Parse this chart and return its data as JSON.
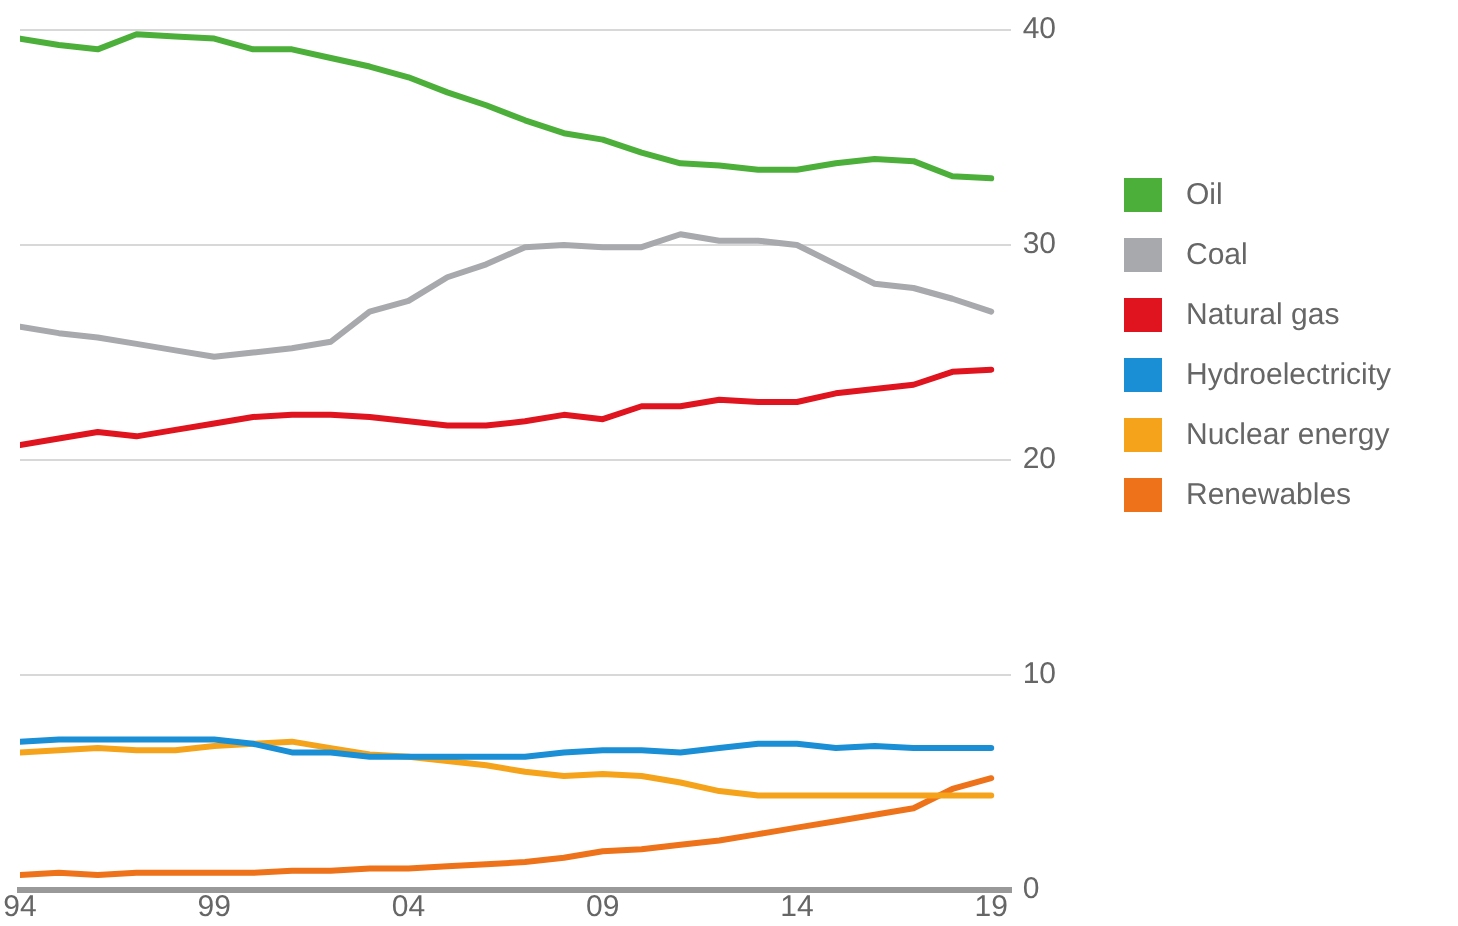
{
  "chart_data": {
    "type": "line",
    "x": [
      1994,
      1995,
      1996,
      1997,
      1998,
      1999,
      2000,
      2001,
      2002,
      2003,
      2004,
      2005,
      2006,
      2007,
      2008,
      2009,
      2010,
      2011,
      2012,
      2013,
      2014,
      2015,
      2016,
      2017,
      2018,
      2019
    ],
    "series": [
      {
        "name": "Oil",
        "color": "#4caf3a",
        "values": [
          39.6,
          39.3,
          39.1,
          39.8,
          39.7,
          39.6,
          39.1,
          39.1,
          38.7,
          38.3,
          37.8,
          37.1,
          36.5,
          35.8,
          35.2,
          34.9,
          34.3,
          33.8,
          33.7,
          33.5,
          33.5,
          33.8,
          34.0,
          33.9,
          33.2,
          33.1
        ]
      },
      {
        "name": "Coal",
        "color": "#a8a9ad",
        "values": [
          26.2,
          25.9,
          25.7,
          25.4,
          25.1,
          24.8,
          25.0,
          25.2,
          25.5,
          26.9,
          27.4,
          28.5,
          29.1,
          29.9,
          30.0,
          29.9,
          29.9,
          30.5,
          30.2,
          30.2,
          30.0,
          29.1,
          28.2,
          28.0,
          27.5,
          26.9
        ]
      },
      {
        "name": "Natural gas",
        "color": "#e0141e",
        "values": [
          20.7,
          21.0,
          21.3,
          21.1,
          21.4,
          21.7,
          22.0,
          22.1,
          22.1,
          22.0,
          21.8,
          21.6,
          21.6,
          21.8,
          22.1,
          21.9,
          22.5,
          22.5,
          22.8,
          22.7,
          22.7,
          23.1,
          23.3,
          23.5,
          24.1,
          24.2
        ]
      },
      {
        "name": "Hydroelectricity",
        "color": "#1a8fd6",
        "values": [
          6.9,
          7.0,
          7.0,
          7.0,
          7.0,
          7.0,
          6.8,
          6.4,
          6.4,
          6.2,
          6.2,
          6.2,
          6.2,
          6.2,
          6.4,
          6.5,
          6.5,
          6.4,
          6.6,
          6.8,
          6.8,
          6.6,
          6.7,
          6.6,
          6.6,
          6.6
        ]
      },
      {
        "name": "Nuclear energy",
        "color": "#f5a31a",
        "values": [
          6.4,
          6.5,
          6.6,
          6.5,
          6.5,
          6.7,
          6.8,
          6.9,
          6.6,
          6.3,
          6.2,
          6.0,
          5.8,
          5.5,
          5.3,
          5.4,
          5.3,
          5.0,
          4.6,
          4.4,
          4.4,
          4.4,
          4.4,
          4.4,
          4.4,
          4.4
        ]
      },
      {
        "name": "Renewables",
        "color": "#ee7219",
        "values": [
          0.7,
          0.8,
          0.7,
          0.8,
          0.8,
          0.8,
          0.8,
          0.9,
          0.9,
          1.0,
          1.0,
          1.1,
          1.2,
          1.3,
          1.5,
          1.8,
          1.9,
          2.1,
          2.3,
          2.6,
          2.9,
          3.2,
          3.5,
          3.8,
          4.7,
          5.2
        ]
      }
    ],
    "xlim": [
      1994,
      2019.5
    ],
    "xticks": [
      {
        "value": 1994,
        "label": "94"
      },
      {
        "value": 1999,
        "label": "99"
      },
      {
        "value": 2004,
        "label": "04"
      },
      {
        "value": 2009,
        "label": "09"
      },
      {
        "value": 2014,
        "label": "14"
      },
      {
        "value": 2019,
        "label": "19"
      }
    ],
    "ylim": [
      0,
      40
    ],
    "yticks": [
      0,
      10,
      20,
      30,
      40
    ],
    "grid": "y",
    "legend": "right",
    "marker": "none",
    "line_style": "solid"
  }
}
